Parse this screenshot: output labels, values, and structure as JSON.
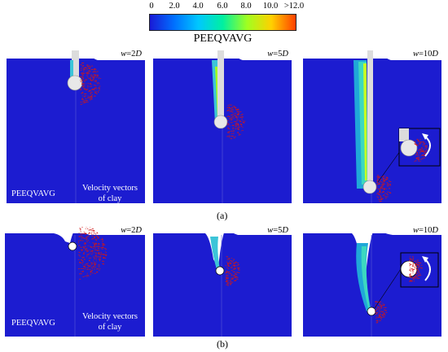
{
  "colorbar": {
    "ticks": [
      "0",
      "2.0",
      "4.0",
      "6.0",
      "8.0",
      "10.0",
      ">12.0"
    ],
    "title": "PEEQVAVG",
    "colors": [
      "#1a1ad6",
      "#0070ff",
      "#00c8ff",
      "#00f0a0",
      "#a0ff20",
      "#ffd000",
      "#ff4000"
    ]
  },
  "rows": [
    {
      "caption": "(a)",
      "panels": [
        {
          "w_var": "w",
          "w_val": "=2",
          "w_unit": "D"
        },
        {
          "w_var": "w",
          "w_val": "=5",
          "w_unit": "D"
        },
        {
          "w_var": "w",
          "w_val": "=10",
          "w_unit": "D"
        }
      ],
      "left_label": "PEEQVAVG",
      "right_label_1": "Velocity vectors",
      "right_label_2": "of clay"
    },
    {
      "caption": "(b)",
      "panels": [
        {
          "w_var": "w",
          "w_val": "=2",
          "w_unit": "D"
        },
        {
          "w_var": "w",
          "w_val": "=5",
          "w_unit": "D"
        },
        {
          "w_var": "w",
          "w_val": "=10",
          "w_unit": "D"
        }
      ],
      "left_label": "PEEQVAVG",
      "right_label_1": "Velocity vectors",
      "right_label_2": "of clay"
    }
  ],
  "theme": {
    "soil": "#1c1cd0",
    "vectors": "#d01818",
    "pipe": "#dcdcdc"
  }
}
